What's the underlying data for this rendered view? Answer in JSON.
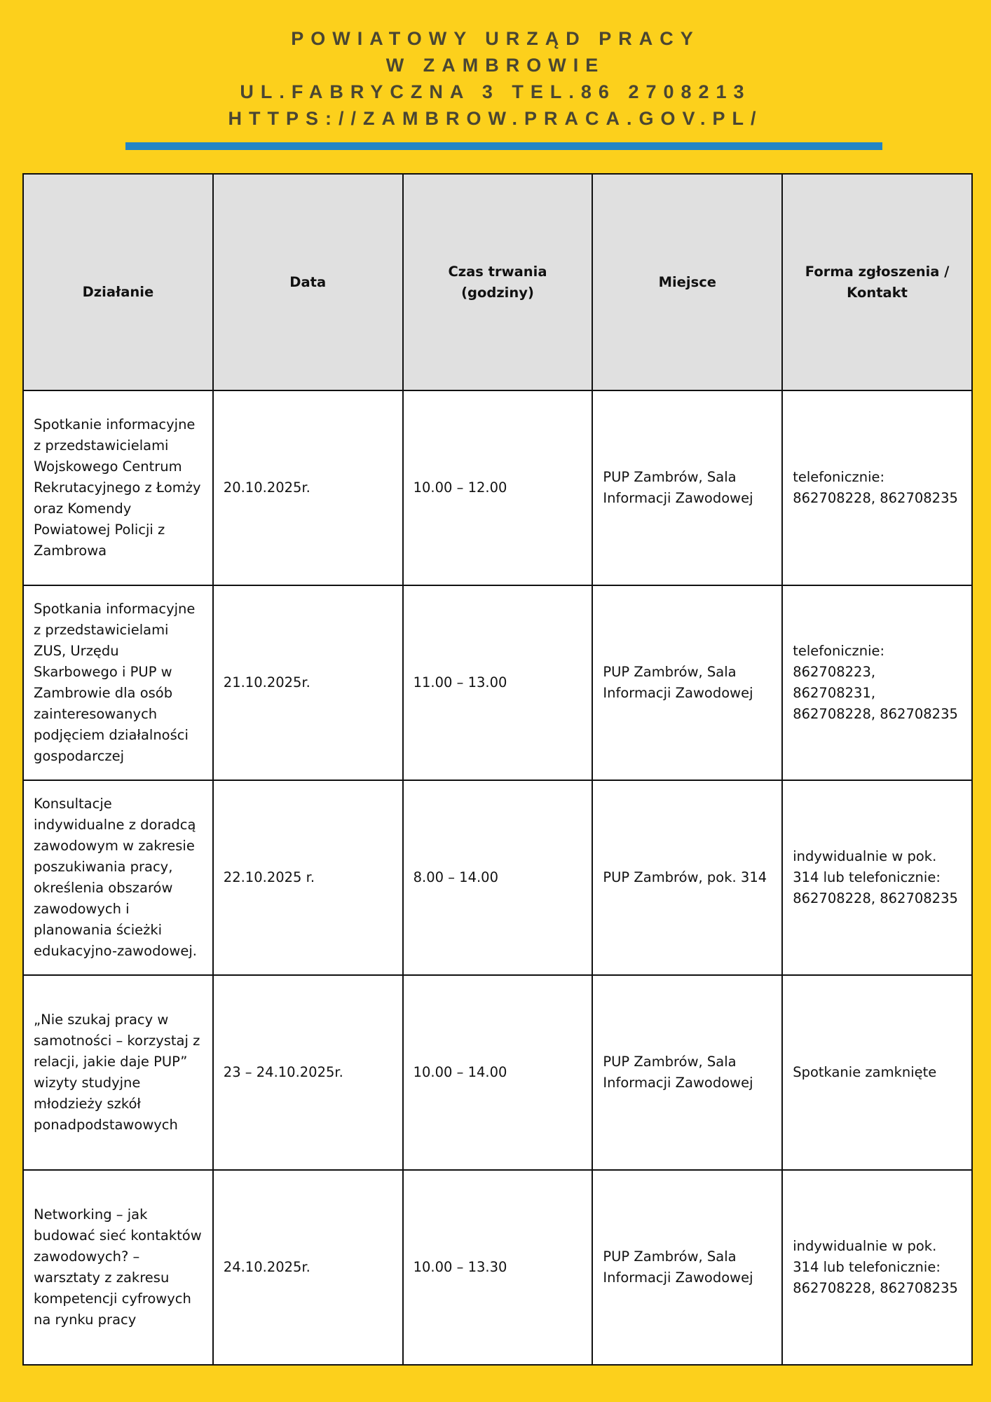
{
  "header": {
    "line1": "POWIATOWY URZĄD PRACY",
    "line2": "W ZAMBROWIE",
    "line3": "UL.FABRYCZNA 3 TEL.86 2708213",
    "line4": "HTTPS://ZAMBROW.PRACA.GOV.PL/"
  },
  "colors": {
    "background": "#fcd01c",
    "accent_bar": "#2385c6",
    "header_row": "#e0e0e0"
  },
  "table": {
    "columns": [
      "Działanie",
      "Data",
      "Czas trwania (godziny)",
      "Miejsce",
      "Forma zgłoszenia / Kontakt"
    ],
    "rows": [
      [
        "Spotkanie informacyjne z przedstawicielami Wojskowego Centrum Rekrutacyjnego z Łomży oraz Komendy Powiatowej Policji z Zambrowa",
        "20.10.2025r.",
        "10.00 – 12.00",
        "PUP Zambrów, Sala Informacji Zawodowej",
        "telefonicznie: 862708228, 862708235"
      ],
      [
        "Spotkania informacyjne z przedstawicielami ZUS, Urzędu Skarbowego i PUP w Zambrowie dla osób zainteresowanych podjęciem działalności gospodarczej",
        "21.10.2025r.",
        "11.00 – 13.00",
        "PUP Zambrów, Sala Informacji Zawodowej",
        "telefonicznie: 862708223, 862708231, 862708228, 862708235"
      ],
      [
        "Konsultacje indywidualne z doradcą zawodowym w zakresie poszukiwania pracy, określenia obszarów zawodowych i planowania ścieżki edukacyjno-zawodowej.",
        "22.10.2025 r.",
        "8.00 – 14.00",
        "PUP Zambrów, pok. 314",
        "indywidualnie w pok. 314 lub telefonicznie: 862708228, 862708235"
      ],
      [
        "„Nie szukaj pracy w samotności – korzystaj z relacji, jakie daje PUP” wizyty studyjne młodzieży szkół ponadpodstawowych",
        "23 – 24.10.2025r.",
        "10.00 – 14.00",
        "PUP Zambrów, Sala Informacji Zawodowej",
        "Spotkanie zamknięte"
      ],
      [
        "Networking – jak budować sieć kontaktów zawodowych? – warsztaty z zakresu kompetencji cyfrowych na rynku pracy",
        "24.10.2025r.",
        "10.00 – 13.30",
        "PUP Zambrów, Sala Informacji Zawodowej",
        "indywidualnie w pok. 314 lub telefonicznie: 862708228, 862708235"
      ]
    ]
  }
}
